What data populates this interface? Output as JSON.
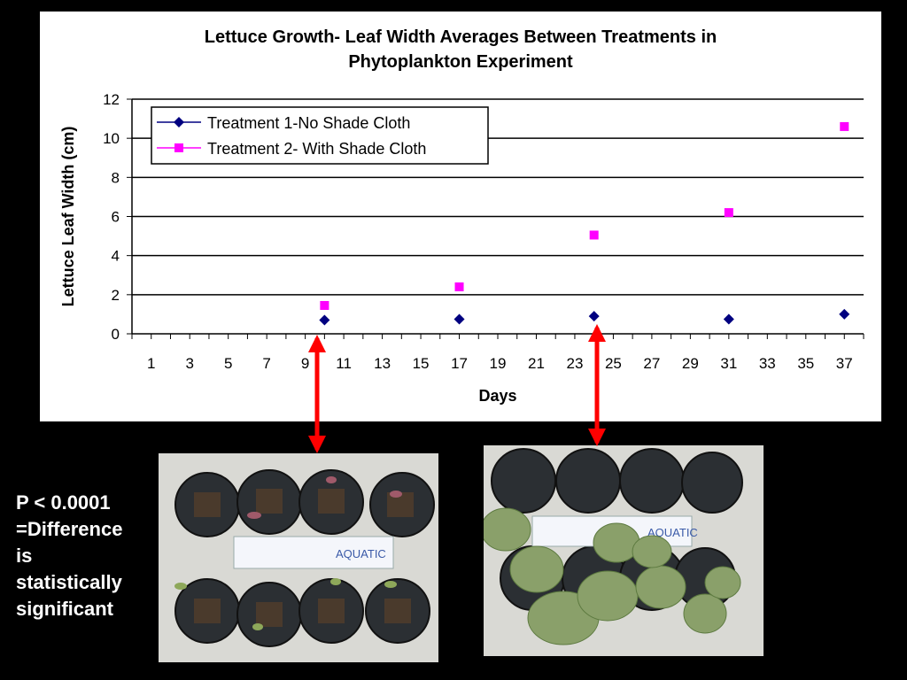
{
  "chart_data": {
    "type": "scatter",
    "title": "Lettuce Growth- Leaf Width Averages Between Treatments in Phytoplankton Experiment",
    "title_lines": [
      "Lettuce Growth- Leaf Width Averages Between Treatments in",
      "Phytoplankton Experiment"
    ],
    "xlabel": "Days",
    "ylabel": "Lettuce Leaf Width (cm)",
    "xlim": [
      0,
      38
    ],
    "ylim": [
      0,
      12
    ],
    "x_ticks": [
      1,
      3,
      5,
      7,
      9,
      11,
      13,
      15,
      17,
      19,
      21,
      23,
      25,
      27,
      29,
      31,
      33,
      35,
      37
    ],
    "y_ticks": [
      0,
      2,
      4,
      6,
      8,
      10,
      12
    ],
    "grid": true,
    "legend_position": "top-left",
    "series": [
      {
        "name": "Treatment 1-No Shade Cloth",
        "color": "#000080",
        "marker": "diamond",
        "points": [
          {
            "x": 10,
            "y": 0.7
          },
          {
            "x": 17,
            "y": 0.75
          },
          {
            "x": 24,
            "y": 0.9
          },
          {
            "x": 31,
            "y": 0.75
          },
          {
            "x": 37,
            "y": 1.0
          }
        ]
      },
      {
        "name": "Treatment 2- With Shade Cloth",
        "color": "#FF00FF",
        "marker": "square",
        "points": [
          {
            "x": 10,
            "y": 1.45
          },
          {
            "x": 17,
            "y": 2.4
          },
          {
            "x": 24,
            "y": 5.05
          },
          {
            "x": 31,
            "y": 6.2
          },
          {
            "x": 37,
            "y": 10.6
          }
        ]
      }
    ]
  },
  "annotation": {
    "lines": [
      "P < 0.0001",
      "=Difference",
      "is",
      "statistically",
      "significant"
    ]
  },
  "arrow_color": "#FF0000",
  "photos": [
    {
      "name": "photo-day-10",
      "ruler_text": "AQUATIC"
    },
    {
      "name": "photo-day-24",
      "ruler_text": "AQUATIC"
    }
  ]
}
